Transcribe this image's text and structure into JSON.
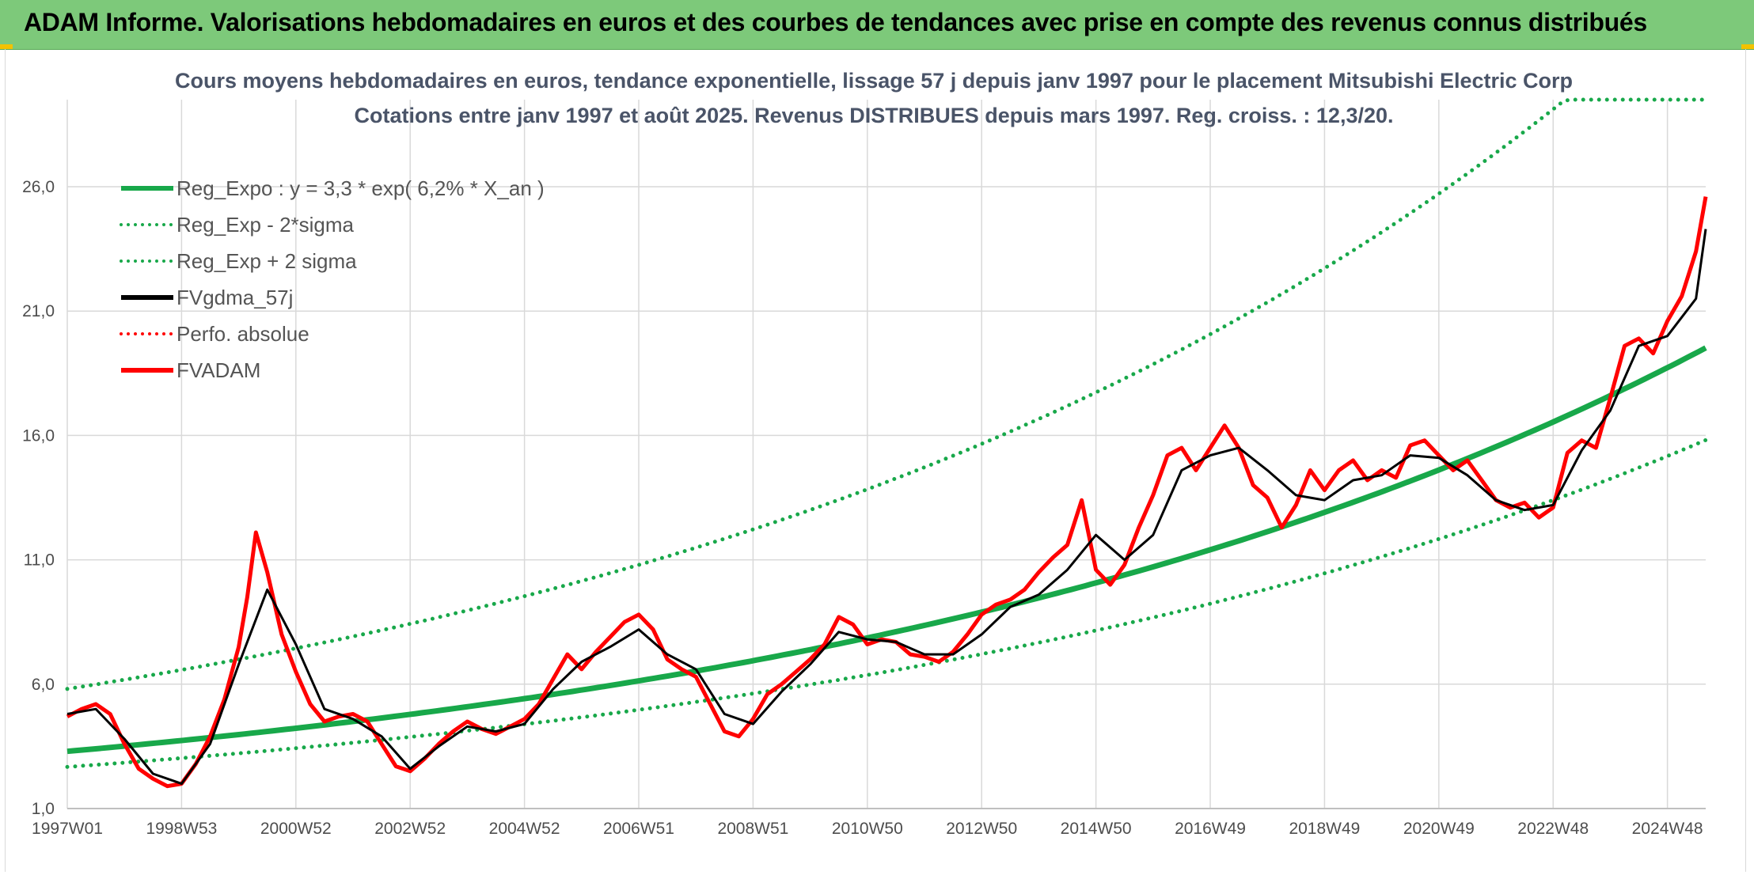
{
  "header": {
    "title": "ADAM Informe. Valorisations hebdomadaires en euros et des courbes de tendances avec prise en compte des revenus connus distribués"
  },
  "colors": {
    "banner": "#7dc97a",
    "reg_expo": "#18a84a",
    "fvgdma": "#000000",
    "fvadam": "#ff0000",
    "grid": "#d9d9d9"
  },
  "chart_data": {
    "type": "line",
    "title_line1": "Cours moyens hebdomadaires en euros, tendance exponentielle, lissage 57 j depuis janv 1997 pour le placement Mitsubishi Electric Corp",
    "title_line2": "Cotations entre janv 1997 et août 2025. Revenus DISTRIBUES depuis mars 1997. Reg. croiss. : 12,3/20.",
    "xlabel": "",
    "ylabel": "",
    "x_range": [
      1997.0,
      2025.67
    ],
    "ylim": [
      1.0,
      29.5
    ],
    "y_ticks": [
      "1,0",
      "6,0",
      "11,0",
      "16,0",
      "21,0",
      "26,0"
    ],
    "y_tick_values": [
      1,
      6,
      11,
      16,
      21,
      26
    ],
    "x_tick_labels": [
      "1997W01",
      "1998W53",
      "2000W52",
      "2002W52",
      "2004W52",
      "2006W51",
      "2008W51",
      "2010W50",
      "2012W50",
      "2014W50",
      "2016W49",
      "2018W49",
      "2020W49",
      "2022W48",
      "2024W48"
    ],
    "x_tick_values": [
      1997.0,
      1999.0,
      2001.0,
      2003.0,
      2005.0,
      2007.0,
      2009.0,
      2011.0,
      2013.0,
      2015.0,
      2017.0,
      2019.0,
      2021.0,
      2023.0,
      2025.0
    ],
    "grid": true,
    "legend_position": "top-left",
    "legend": [
      {
        "label": "Reg_Expo : y = 3,3 * exp( 6,2% *  X_an )",
        "color": "#18a84a",
        "style": "solid"
      },
      {
        "label": "Reg_Exp - 2*sigma",
        "color": "#18a84a",
        "style": "dotted"
      },
      {
        "label": "Reg_Exp + 2 sigma",
        "color": "#18a84a",
        "style": "dotted"
      },
      {
        "label": "FVgdma_57j",
        "color": "#000000",
        "style": "solid"
      },
      {
        "label": "Perfo. absolue",
        "color": "#ff0000",
        "style": "dotted"
      },
      {
        "label": "FVADAM",
        "color": "#ff0000",
        "style": "solid"
      }
    ],
    "series": [
      {
        "name": "FVADAM",
        "x": [
          1997.0,
          1997.25,
          1997.5,
          1997.75,
          1998.0,
          1998.25,
          1998.5,
          1998.75,
          1999.0,
          1999.25,
          1999.5,
          1999.75,
          2000.0,
          2000.15,
          2000.3,
          2000.5,
          2000.75,
          2001.0,
          2001.25,
          2001.5,
          2001.75,
          2002.0,
          2002.25,
          2002.5,
          2002.75,
          2003.0,
          2003.25,
          2003.5,
          2003.75,
          2004.0,
          2004.25,
          2004.5,
          2004.75,
          2005.0,
          2005.25,
          2005.5,
          2005.75,
          2006.0,
          2006.25,
          2006.5,
          2006.75,
          2007.0,
          2007.25,
          2007.5,
          2007.75,
          2008.0,
          2008.25,
          2008.5,
          2008.75,
          2009.0,
          2009.25,
          2009.5,
          2009.75,
          2010.0,
          2010.25,
          2010.5,
          2010.75,
          2011.0,
          2011.25,
          2011.5,
          2011.75,
          2012.0,
          2012.25,
          2012.5,
          2012.75,
          2013.0,
          2013.25,
          2013.5,
          2013.75,
          2014.0,
          2014.25,
          2014.5,
          2014.75,
          2015.0,
          2015.25,
          2015.5,
          2015.75,
          2016.0,
          2016.25,
          2016.5,
          2016.75,
          2017.0,
          2017.25,
          2017.5,
          2017.75,
          2018.0,
          2018.25,
          2018.5,
          2018.75,
          2019.0,
          2019.25,
          2019.5,
          2019.75,
          2020.0,
          2020.25,
          2020.5,
          2020.75,
          2021.0,
          2021.25,
          2021.5,
          2021.75,
          2022.0,
          2022.25,
          2022.5,
          2022.75,
          2023.0,
          2023.25,
          2023.5,
          2023.75,
          2024.0,
          2024.25,
          2024.5,
          2024.75,
          2025.0,
          2025.25,
          2025.5,
          2025.67
        ],
        "values": [
          4.7,
          5.0,
          5.2,
          4.8,
          3.6,
          2.6,
          2.2,
          1.9,
          2.0,
          2.8,
          3.9,
          5.4,
          7.5,
          9.5,
          12.1,
          10.5,
          8.0,
          6.5,
          5.2,
          4.5,
          4.7,
          4.8,
          4.5,
          3.6,
          2.7,
          2.5,
          3.0,
          3.6,
          4.1,
          4.5,
          4.2,
          4.0,
          4.3,
          4.6,
          5.2,
          6.2,
          7.2,
          6.6,
          7.3,
          7.9,
          8.5,
          8.8,
          8.2,
          7.0,
          6.6,
          6.3,
          5.2,
          4.1,
          3.9,
          4.6,
          5.6,
          6.0,
          6.5,
          7.0,
          7.6,
          8.7,
          8.4,
          7.6,
          7.8,
          7.7,
          7.2,
          7.1,
          6.9,
          7.3,
          8.0,
          8.8,
          9.2,
          9.4,
          9.8,
          10.5,
          11.1,
          11.6,
          13.4,
          10.6,
          10.0,
          10.8,
          12.3,
          13.6,
          15.2,
          15.5,
          14.6,
          15.5,
          16.4,
          15.5,
          14.0,
          13.5,
          12.3,
          13.2,
          14.6,
          13.8,
          14.6,
          15.0,
          14.2,
          14.6,
          14.3,
          15.6,
          15.8,
          15.2,
          14.6,
          15.0,
          14.2,
          13.4,
          13.1,
          13.3,
          12.7,
          13.1,
          15.3,
          15.8,
          15.5,
          17.5,
          19.6,
          19.9,
          19.3,
          20.6,
          21.6,
          23.4,
          25.6
        ]
      },
      {
        "name": "FVgdma_57j",
        "x": [
          1997.0,
          1997.5,
          1998.0,
          1998.5,
          1999.0,
          1999.5,
          2000.0,
          2000.5,
          2001.0,
          2001.5,
          2002.0,
          2002.5,
          2003.0,
          2003.5,
          2004.0,
          2004.5,
          2005.0,
          2005.5,
          2006.0,
          2006.5,
          2007.0,
          2007.5,
          2008.0,
          2008.5,
          2009.0,
          2009.5,
          2010.0,
          2010.5,
          2011.0,
          2011.5,
          2012.0,
          2012.5,
          2013.0,
          2013.5,
          2014.0,
          2014.5,
          2015.0,
          2015.5,
          2016.0,
          2016.5,
          2017.0,
          2017.5,
          2018.0,
          2018.5,
          2019.0,
          2019.5,
          2020.0,
          2020.5,
          2021.0,
          2021.5,
          2022.0,
          2022.5,
          2023.0,
          2023.5,
          2024.0,
          2024.5,
          2025.0,
          2025.5,
          2025.67
        ],
        "values": [
          4.8,
          5.0,
          3.8,
          2.4,
          2.0,
          3.6,
          6.8,
          9.8,
          7.6,
          5.0,
          4.6,
          3.9,
          2.6,
          3.5,
          4.3,
          4.1,
          4.4,
          5.8,
          6.9,
          7.5,
          8.2,
          7.2,
          6.6,
          4.8,
          4.4,
          5.7,
          6.8,
          8.1,
          7.8,
          7.7,
          7.2,
          7.2,
          8.0,
          9.1,
          9.6,
          10.6,
          12.0,
          11.0,
          12.0,
          14.6,
          15.2,
          15.5,
          14.6,
          13.6,
          13.4,
          14.2,
          14.4,
          15.2,
          15.1,
          14.4,
          13.4,
          13.0,
          13.2,
          15.4,
          17.0,
          19.6,
          20.0,
          21.5,
          24.3
        ]
      },
      {
        "name": "Reg_Expo",
        "formula": "y = 3,3 * exp( 6,2% * X_an )",
        "a": 3.3,
        "rate": 0.062,
        "start_year": 1997.0
      },
      {
        "name": "Reg_Exp - 2*sigma",
        "factor": 0.81
      },
      {
        "name": "Reg_Exp + 2 sigma",
        "factor": 1.76,
        "cap": 29.5
      }
    ]
  }
}
